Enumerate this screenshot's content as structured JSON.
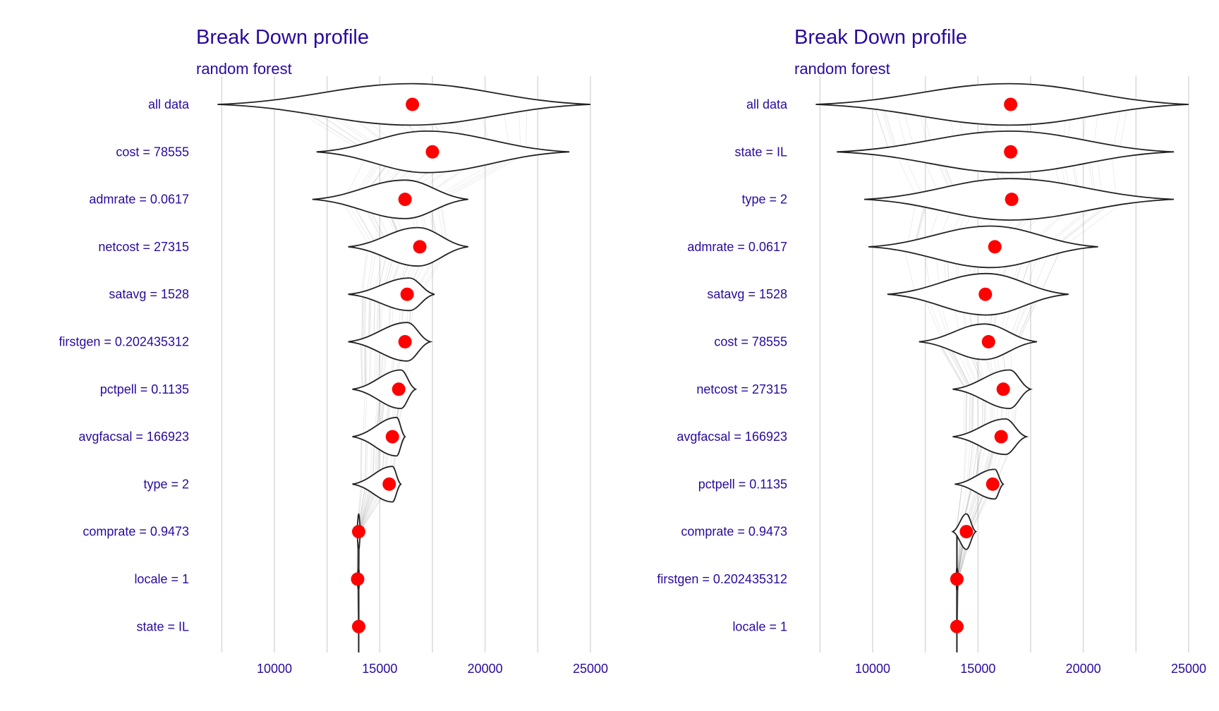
{
  "colors": {
    "title": "#2a0a9e",
    "point": "#ff0000",
    "violin_stroke": "#222222",
    "grid": "#dcdcdc"
  },
  "chart_data": [
    {
      "type": "violin",
      "title": "Break Down profile",
      "subtitle": "random forest",
      "xlim": [
        7000,
        25200
      ],
      "xticks": [
        10000,
        15000,
        20000,
        25000
      ],
      "tick_labels": [
        "10000",
        "15000",
        "20000",
        "25000"
      ],
      "grid": true,
      "categories": [
        {
          "label": "all data",
          "mean": 16550,
          "min": 7300,
          "max": 25000,
          "peak": 16500,
          "width": 14
        },
        {
          "label": "cost = 78555",
          "mean": 17500,
          "min": 12000,
          "max": 24000,
          "peak": 17200,
          "width": 14
        },
        {
          "label": "admrate = 0.0617",
          "mean": 16200,
          "min": 11800,
          "max": 19200,
          "peak": 16200,
          "width": 13
        },
        {
          "label": "netcost = 27315",
          "mean": 16900,
          "min": 13500,
          "max": 19200,
          "peak": 16800,
          "width": 13
        },
        {
          "label": "satavg = 1528",
          "mean": 16300,
          "min": 13500,
          "max": 17600,
          "peak": 16400,
          "width": 11
        },
        {
          "label": "firstgen = 0.202435312",
          "mean": 16200,
          "min": 13500,
          "max": 17400,
          "peak": 16300,
          "width": 13
        },
        {
          "label": "pctpell = 0.1135",
          "mean": 15900,
          "min": 13700,
          "max": 16700,
          "peak": 16000,
          "width": 13
        },
        {
          "label": "avgfacsal = 166923",
          "mean": 15600,
          "min": 13700,
          "max": 16200,
          "peak": 15800,
          "width": 13
        },
        {
          "label": "type = 2",
          "mean": 15450,
          "min": 13700,
          "max": 16000,
          "peak": 15600,
          "width": 12
        },
        {
          "label": "comprate = 0.9473",
          "mean": 14000,
          "min": 13900,
          "max": 14100,
          "peak": 14000,
          "width": 12
        },
        {
          "label": "locale = 1",
          "mean": 13950,
          "min": 13900,
          "max": 14050,
          "peak": 14000,
          "width": 7
        },
        {
          "label": "state = IL",
          "mean": 14000,
          "min": 13950,
          "max": 14050,
          "peak": 14000,
          "width": 4
        }
      ]
    },
    {
      "type": "violin",
      "title": "Break Down profile",
      "subtitle": "random forest",
      "xlim": [
        7000,
        25200
      ],
      "xticks": [
        10000,
        15000,
        20000,
        25000
      ],
      "tick_labels": [
        "10000",
        "15000",
        "20000",
        "25000"
      ],
      "grid": true,
      "categories": [
        {
          "label": "all data",
          "mean": 16550,
          "min": 7300,
          "max": 25000,
          "peak": 16500,
          "width": 14
        },
        {
          "label": "state = IL",
          "mean": 16550,
          "min": 8300,
          "max": 24300,
          "peak": 16500,
          "width": 14
        },
        {
          "label": "type = 2",
          "mean": 16600,
          "min": 9600,
          "max": 24300,
          "peak": 16500,
          "width": 14
        },
        {
          "label": "admrate = 0.0617",
          "mean": 15800,
          "min": 9800,
          "max": 20700,
          "peak": 15600,
          "width": 14
        },
        {
          "label": "satavg = 1528",
          "mean": 15350,
          "min": 10700,
          "max": 19300,
          "peak": 15400,
          "width": 14
        },
        {
          "label": "cost = 78555",
          "mean": 15500,
          "min": 12200,
          "max": 17800,
          "peak": 15300,
          "width": 12
        },
        {
          "label": "netcost = 27315",
          "mean": 16200,
          "min": 13800,
          "max": 17500,
          "peak": 16500,
          "width": 13
        },
        {
          "label": "avgfacsal = 166923",
          "mean": 16100,
          "min": 13800,
          "max": 17300,
          "peak": 16300,
          "width": 12
        },
        {
          "label": "pctpell = 0.1135",
          "mean": 15700,
          "min": 13900,
          "max": 16200,
          "peak": 15800,
          "width": 10
        },
        {
          "label": "comprate = 0.9473",
          "mean": 14450,
          "min": 13800,
          "max": 14900,
          "peak": 14450,
          "width": 12
        },
        {
          "label": "firstgen = 0.202435312",
          "mean": 14000,
          "min": 13950,
          "max": 14100,
          "peak": 14000,
          "width": 8
        },
        {
          "label": "locale = 1",
          "mean": 14000,
          "min": 13950,
          "max": 14050,
          "peak": 14000,
          "width": 4
        }
      ]
    }
  ]
}
